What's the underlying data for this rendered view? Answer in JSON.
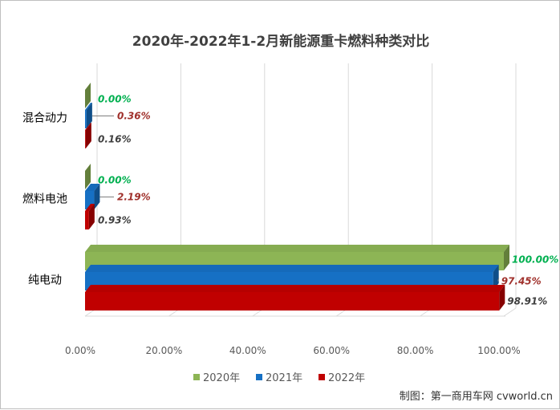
{
  "chart_data": {
    "type": "bar",
    "orientation": "horizontal",
    "three_d": true,
    "title": "2020年-2022年1-2月新能源重卡燃料种类对比",
    "categories": [
      "混合动力",
      "燃料电池",
      "纯电动"
    ],
    "series": [
      {
        "name": "2020年",
        "values": [
          0.0,
          0.0,
          100.0
        ],
        "labels": [
          "0.00%",
          "0.00%",
          "100.00%"
        ],
        "color": "#8db555",
        "label_color": "#00b050"
      },
      {
        "name": "2021年",
        "values": [
          0.36,
          2.19,
          97.45
        ],
        "labels": [
          "0.36%",
          "2.19%",
          "97.45%"
        ],
        "color": "#1670c4",
        "label_color": "#a0312c"
      },
      {
        "name": "2022年",
        "values": [
          0.16,
          0.93,
          98.91
        ],
        "labels": [
          "0.16%",
          "0.93%",
          "98.91%"
        ],
        "color": "#c00000",
        "label_color": "#404040"
      }
    ],
    "xlim": [
      0,
      100
    ],
    "ticks": [
      "0.00%",
      "20.00%",
      "40.00%",
      "60.00%",
      "80.00%",
      "100.00%"
    ],
    "gridlines": true,
    "legend_position": "bottom"
  },
  "source_text": "制图：第一商用车网 cvworld.cn"
}
